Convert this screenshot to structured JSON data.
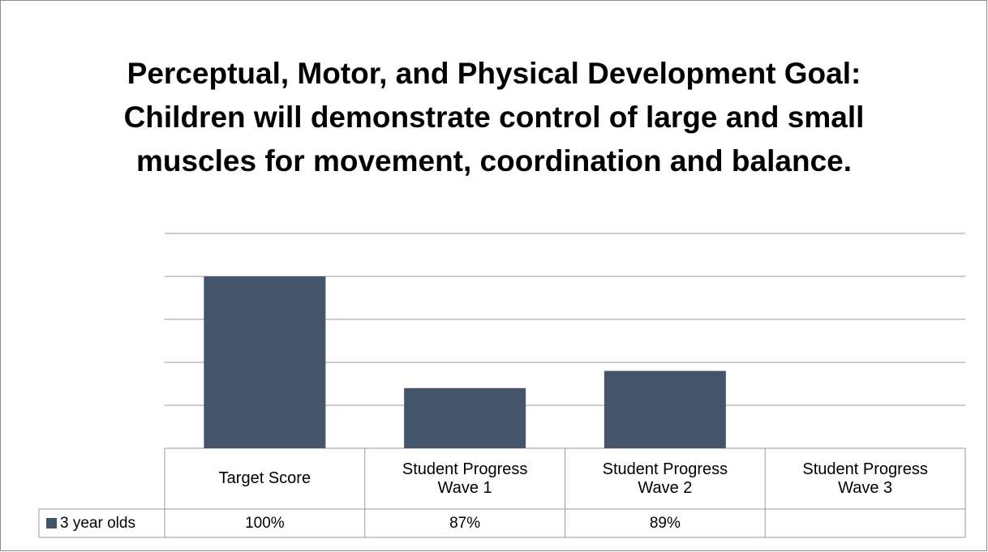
{
  "chart_data": {
    "type": "bar",
    "title": "Perceptual, Motor, and Physical Development Goal: Children will demonstrate control of large and small muscles for movement, coordination and balance.",
    "categories": [
      "Target Score",
      "Student Progress Wave 1",
      "Student Progress Wave 2",
      "Student Progress Wave 3"
    ],
    "series": [
      {
        "name": "3 year olds",
        "color": "#44546a",
        "values": [
          100,
          87,
          89,
          null
        ],
        "value_labels": [
          "100%",
          "87%",
          "89%",
          null
        ]
      }
    ],
    "ylim": [
      80,
      105
    ],
    "yticks": [
      80,
      85,
      90,
      95,
      100,
      105
    ],
    "grid": true,
    "legend": "table"
  }
}
